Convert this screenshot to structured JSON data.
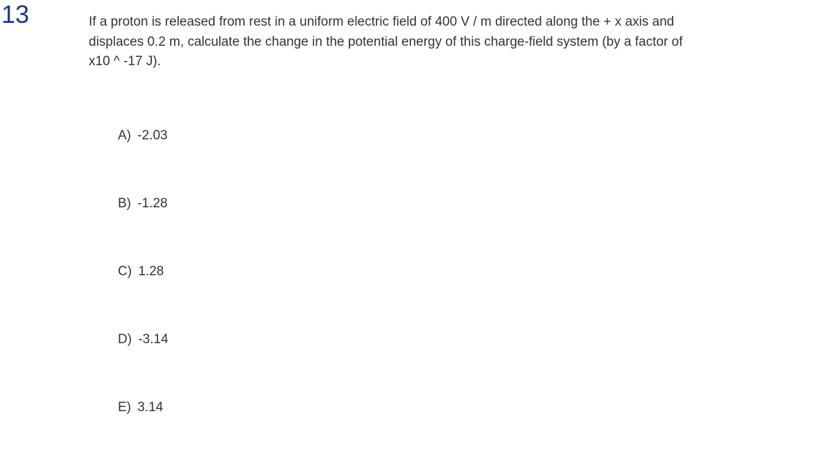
{
  "question": {
    "number": "13",
    "number_color": "#1a3a8a",
    "text": "If a proton is released from rest in a uniform electric field of 400 V / m directed along the + x axis and displaces 0.2 m, calculate the change in the potential energy of this charge-field system (by a factor of x10 ^ -17 J).",
    "text_color": "#333333",
    "text_fontsize": 19,
    "background_color": "#ffffff"
  },
  "options": [
    {
      "label": "A)",
      "value": "-2.03"
    },
    {
      "label": "B)",
      "value": "-1.28"
    },
    {
      "label": "C)",
      "value": "1.28"
    },
    {
      "label": "D)",
      "value": "-3.14"
    },
    {
      "label": "E)",
      "value": "3.14"
    }
  ]
}
